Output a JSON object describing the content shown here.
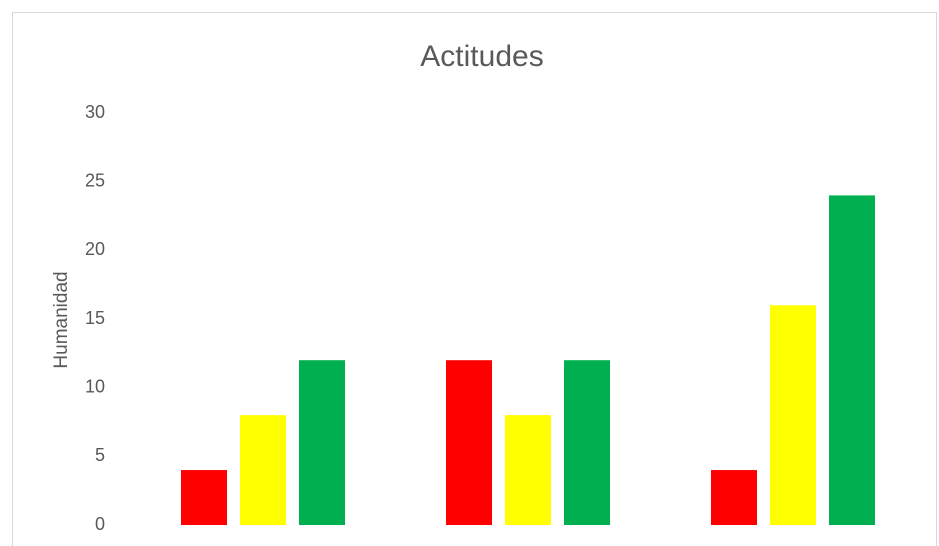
{
  "chart_data": {
    "type": "bar",
    "title": "Actitudes",
    "y_label": "Humanidad",
    "categories": [
      null,
      null,
      null
    ],
    "series": [
      {
        "color": "#ff0000",
        "values": [
          4,
          12,
          4
        ]
      },
      {
        "color": "#ffff00",
        "values": [
          8,
          8,
          16
        ]
      },
      {
        "color": "#00b050",
        "values": [
          12,
          12,
          24
        ]
      }
    ],
    "ylim": [
      0,
      30
    ],
    "yticks": [
      0,
      5,
      10,
      15,
      20,
      25,
      30
    ],
    "grid": false
  }
}
